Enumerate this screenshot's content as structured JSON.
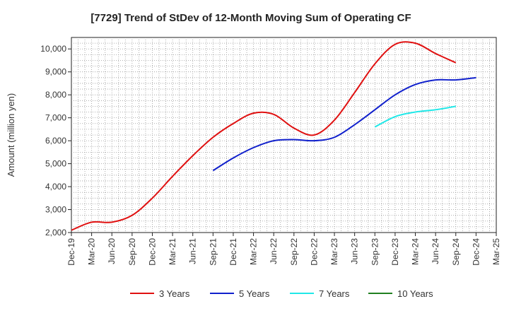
{
  "chart_data": {
    "type": "line",
    "title": "[7729]  Trend of StDev of 12-Month Moving Sum of Operating CF",
    "xlabel": "",
    "ylabel": "Amount (million yen)",
    "ylim": [
      2000,
      10500
    ],
    "yticks": [
      2000,
      3000,
      4000,
      5000,
      6000,
      7000,
      8000,
      9000,
      10000
    ],
    "ytick_labels": [
      "2,000",
      "3,000",
      "4,000",
      "5,000",
      "6,000",
      "7,000",
      "8,000",
      "9,000",
      "10,000"
    ],
    "x_categories": [
      "Dec-19",
      "Mar-20",
      "Jun-20",
      "Sep-20",
      "Dec-20",
      "Mar-21",
      "Jun-21",
      "Sep-21",
      "Dec-21",
      "Mar-22",
      "Jun-22",
      "Sep-22",
      "Dec-22",
      "Mar-23",
      "Jun-23",
      "Sep-23",
      "Dec-23",
      "Mar-24",
      "Jun-24",
      "Sep-24",
      "Dec-24",
      "Mar-25"
    ],
    "grid": true,
    "legend_position": "bottom",
    "series": [
      {
        "name": "3 Years",
        "color": "#e01010",
        "start_index": 0,
        "values": [
          2100,
          2450,
          2450,
          2750,
          3500,
          4450,
          5350,
          6150,
          6750,
          7200,
          7150,
          6550,
          6250,
          6900,
          8100,
          9350,
          10200,
          10250,
          9800,
          9400
        ]
      },
      {
        "name": "5 Years",
        "color": "#1020cc",
        "start_index": 7,
        "values": [
          4700,
          5250,
          5700,
          6000,
          6050,
          6000,
          6150,
          6700,
          7350,
          8000,
          8450,
          8650,
          8650,
          8750
        ]
      },
      {
        "name": "7 Years",
        "color": "#20e8e8",
        "start_index": 15,
        "values": [
          6600,
          7050,
          7250,
          7350,
          7500
        ]
      },
      {
        "name": "10 Years",
        "color": "#208020",
        "start_index": 0,
        "values": []
      }
    ]
  }
}
